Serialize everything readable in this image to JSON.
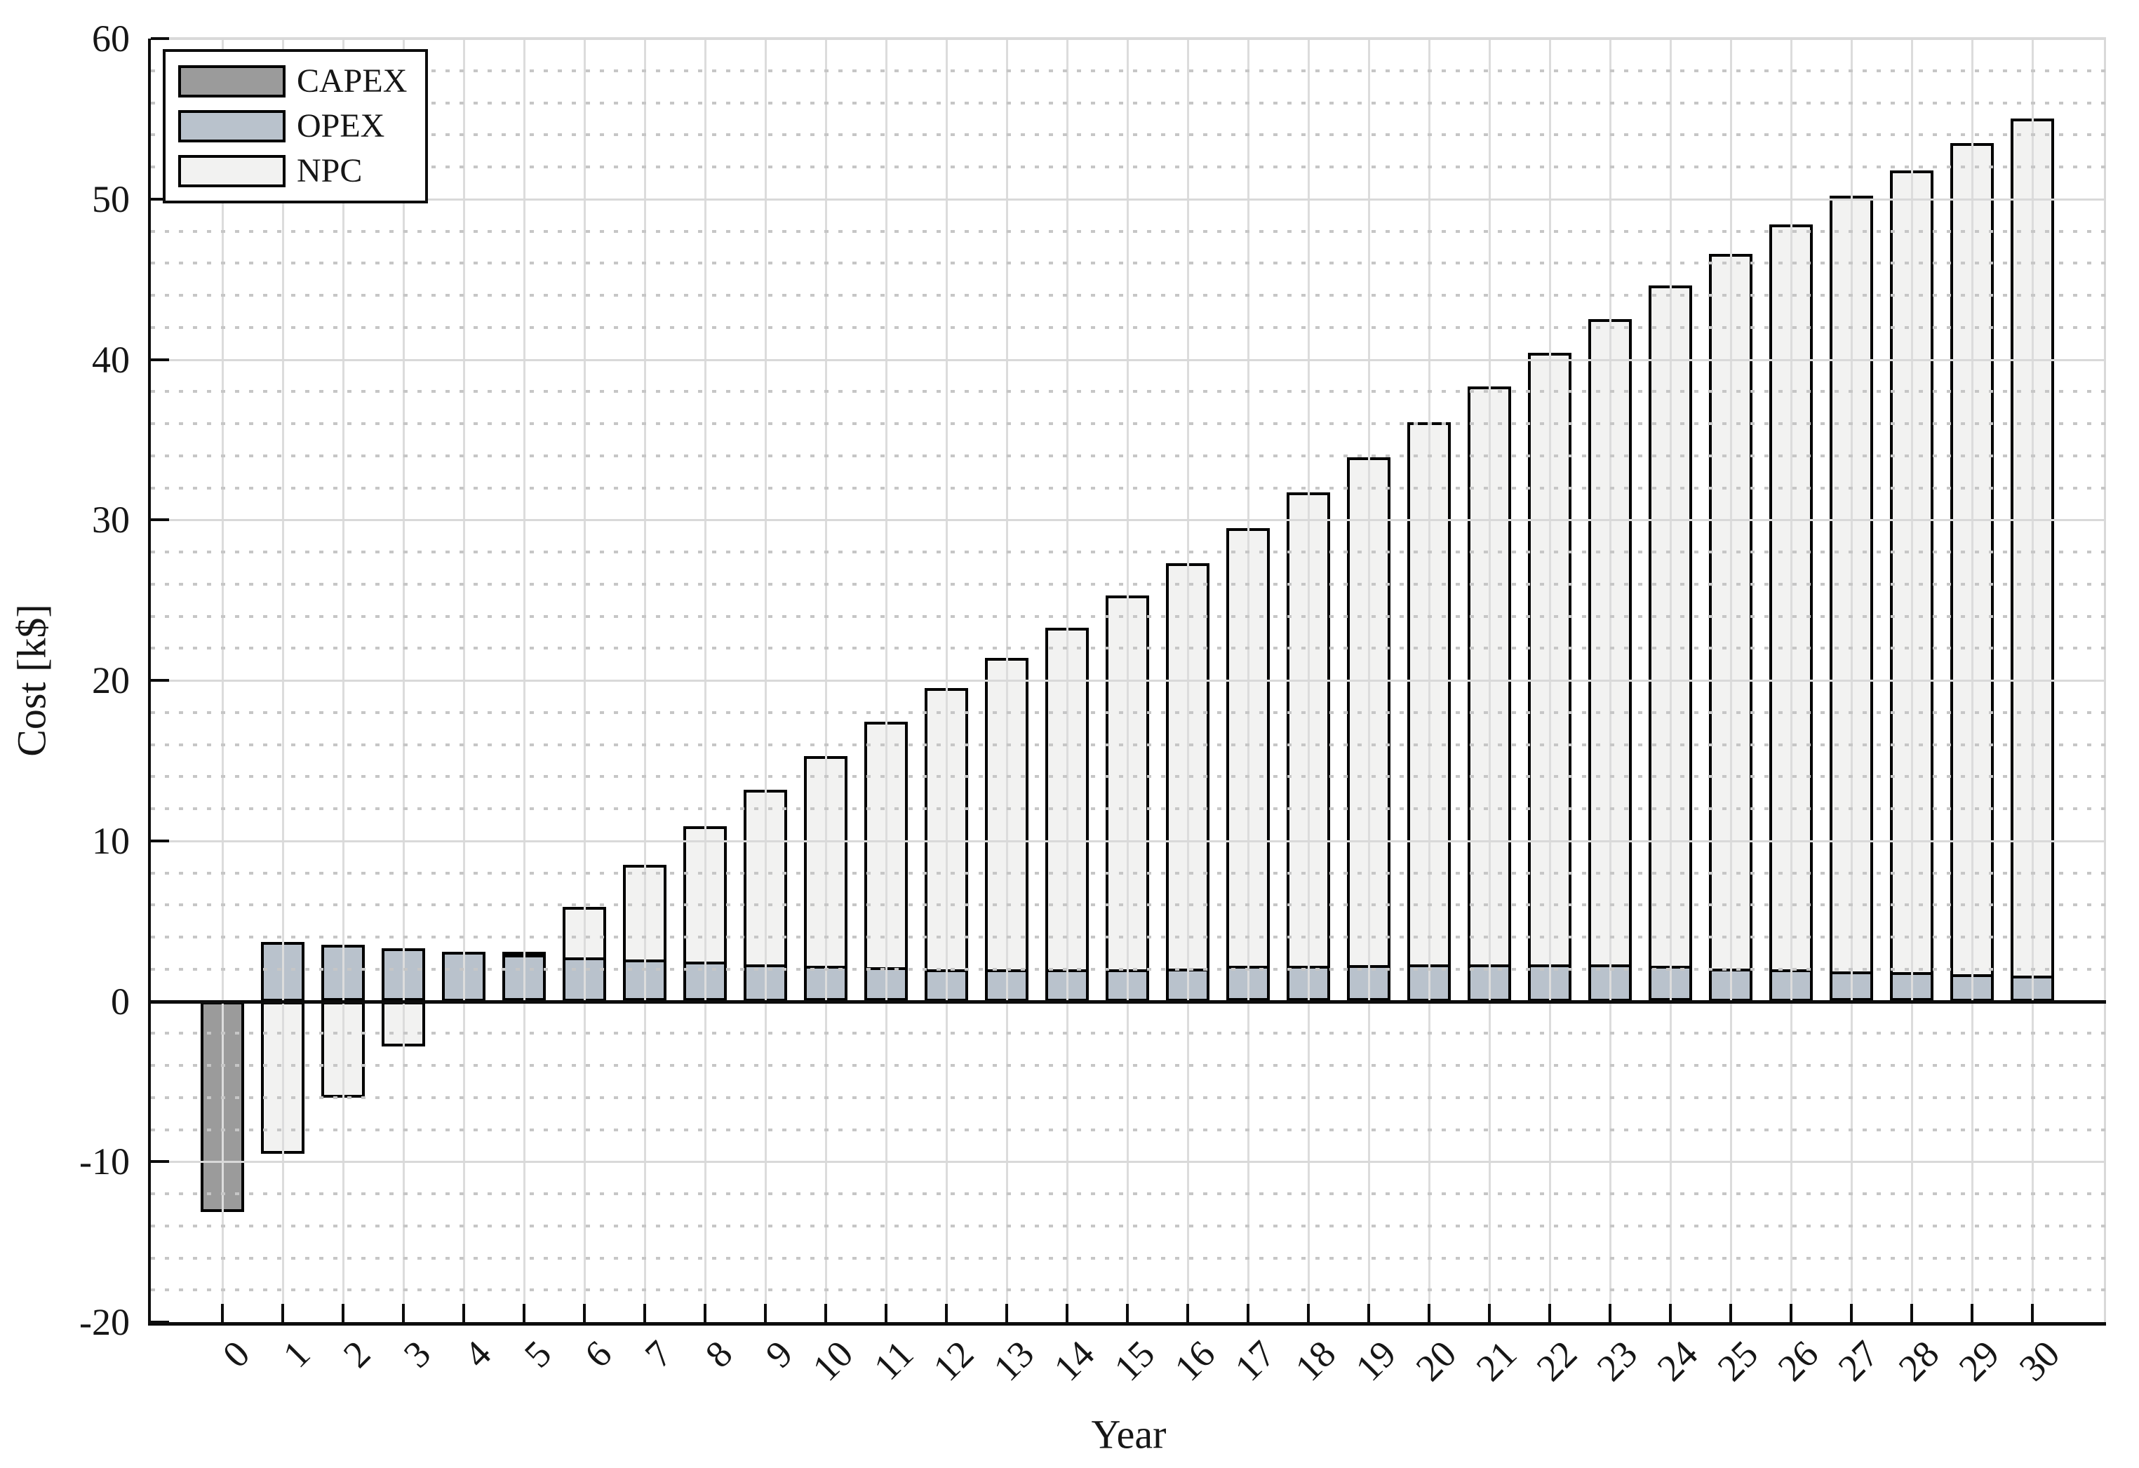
{
  "chart_data": {
    "type": "bar",
    "title": "",
    "xlabel": "Year",
    "ylabel": "Cost [k$]",
    "x_axis": {
      "label": "Year",
      "ticks": [
        0,
        1,
        2,
        3,
        4,
        5,
        6,
        7,
        8,
        9,
        10,
        11,
        12,
        13,
        14,
        15,
        16,
        17,
        18,
        19,
        20,
        21,
        22,
        23,
        24,
        25,
        26,
        27,
        28,
        29,
        30
      ]
    },
    "y_axis": {
      "label": "Cost [k$]",
      "ticks": [
        -20,
        -10,
        0,
        10,
        20,
        30,
        40,
        50,
        60
      ],
      "lim": [
        -20,
        60
      ],
      "minor_grid_step": 2
    },
    "grid": {
      "major": "solid",
      "minor": "dotted",
      "vertical_per_year": true
    },
    "legend": {
      "position": "top-left",
      "entries": [
        "CAPEX",
        "OPEX",
        "NPC"
      ]
    },
    "categories": [
      0,
      1,
      2,
      3,
      4,
      5,
      6,
      7,
      8,
      9,
      10,
      11,
      12,
      13,
      14,
      15,
      16,
      17,
      18,
      19,
      20,
      21,
      22,
      23,
      24,
      25,
      26,
      27,
      28,
      29,
      30
    ],
    "series": [
      {
        "name": "CAPEX",
        "color": "#9b9b9b",
        "edge_color": "#000000",
        "values": [
          -13.1,
          0,
          0,
          0,
          0,
          0,
          0,
          0,
          0,
          0,
          0,
          0,
          0,
          0,
          0,
          0,
          0,
          0,
          0,
          0,
          0,
          0,
          0,
          0,
          0,
          0,
          0,
          0,
          0,
          0,
          0
        ]
      },
      {
        "name": "OPEX",
        "color": "#b9c2cc",
        "edge_color": "#000000",
        "values": [
          0,
          3.7,
          3.5,
          3.3,
          3.1,
          2.9,
          2.75,
          2.6,
          2.45,
          2.3,
          2.2,
          2.1,
          2.0,
          2.0,
          2.0,
          2.0,
          2.05,
          2.2,
          2.2,
          2.25,
          2.3,
          2.3,
          2.3,
          2.3,
          2.2,
          2.05,
          2.0,
          1.85,
          1.8,
          1.7,
          1.6
        ]
      },
      {
        "name": "NPC",
        "color": "#f2f2f1",
        "edge_color": "#000000",
        "values": [
          null,
          -9.5,
          -6.0,
          -2.8,
          0.3,
          3.1,
          5.9,
          8.5,
          10.9,
          13.2,
          15.3,
          17.4,
          19.5,
          21.4,
          23.3,
          25.3,
          27.3,
          29.5,
          31.7,
          33.9,
          36.1,
          38.3,
          40.4,
          42.5,
          44.6,
          46.6,
          48.4,
          50.2,
          51.8,
          53.5,
          55.0
        ]
      }
    ]
  }
}
